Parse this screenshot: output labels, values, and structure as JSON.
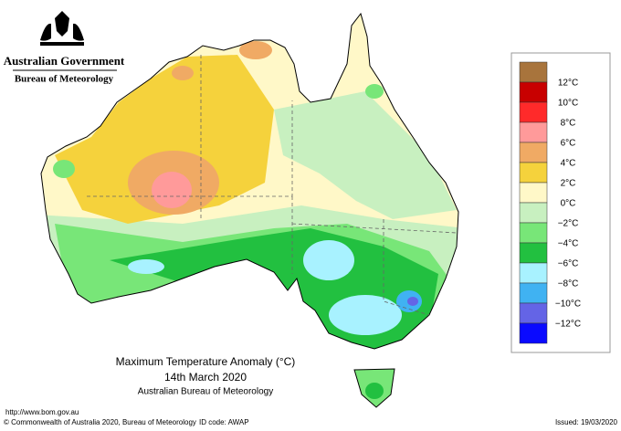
{
  "header": {
    "government": "Australian Government",
    "bureau": "Bureau of Meteorology"
  },
  "map": {
    "title": "Maximum Temperature Anomaly (°C)",
    "date": "14th March 2020",
    "source": "Australian Bureau of Meteorology"
  },
  "legend": {
    "colors": [
      "#a8743c",
      "#c80000",
      "#ff2a2a",
      "#ff9a9a",
      "#f0aa64",
      "#f5d23c",
      "#fff8c8",
      "#c8f0c0",
      "#78e678",
      "#22c040",
      "#a8f2ff",
      "#40b2f2",
      "#6464e6",
      "#0a0aff"
    ],
    "labels": [
      "12°C",
      "10°C",
      "8°C",
      "6°C",
      "4°C",
      "2°C",
      "0°C",
      "−2°C",
      "−4°C",
      "−6°C",
      "−8°C",
      "−10°C",
      "−12°C"
    ]
  },
  "footer": {
    "url": "http://www.bom.gov.au",
    "copyright": "© Commonwealth of Australia 2020, Bureau of Meteorology",
    "id_code": "ID code: AWAP",
    "issued": "Issued: 19/03/2020"
  }
}
